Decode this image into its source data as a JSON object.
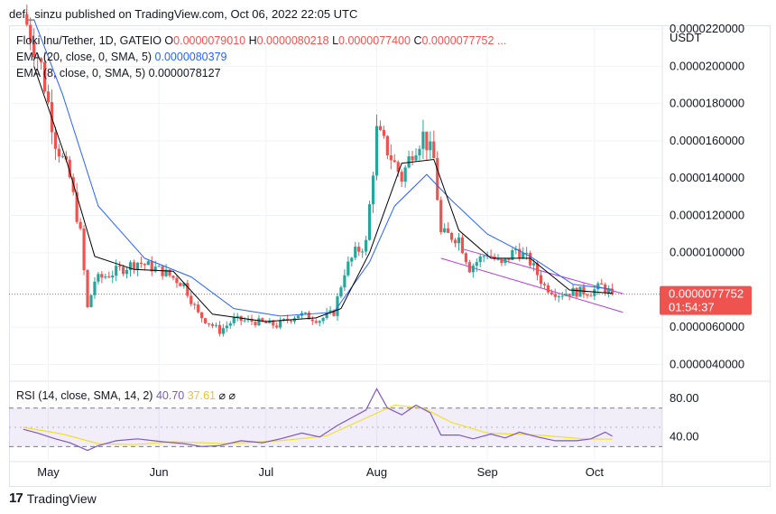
{
  "header": {
    "published": "defi_sinzu published on TradingView.com, Oct 06, 2022 22:05 UTC"
  },
  "legend": {
    "symbol": "Floki Inu/Tether, 1D, GATEIO",
    "o_label": "O",
    "o_value": "0.0000079010",
    "h_label": "H",
    "h_value": "0.0000080218",
    "l_label": "L",
    "l_value": "0.0000077400",
    "c_label": "C",
    "c_value": "0.0000077752 ...",
    "ema20_label": "EMA (20, close, 0, SMA, 5)",
    "ema20_value": "0.0000080379",
    "ema8_label": "EMA (8, close, 0, SMA, 5)",
    "ema8_value": "0.0000078127",
    "rsi_label": "RSI (14, close, SMA, 14, 2)",
    "rsi_value": "40.70",
    "rsi_ma_value": "37.61",
    "rsi_extra": "⌀ ⌀"
  },
  "axis": {
    "currency": "USDT"
  },
  "price_tag": {
    "value": "0.0000077752",
    "countdown": "01:54:37"
  },
  "footer": {
    "brand": "TradingView"
  },
  "colors": {
    "up": "#26a69a",
    "down": "#ef5350",
    "ema20": "#2962ff",
    "ema8": "#000000",
    "rsi": "#7e57c2",
    "rsi_ma": "#f2e02a",
    "channel": "#b23fd8"
  },
  "chart_data": [
    {
      "type": "candlestick",
      "title": "Floki Inu/Tether, 1D, GATEIO",
      "x_tick_labels": [
        "May",
        "Jun",
        "Jul",
        "Aug",
        "Sep",
        "Oct"
      ],
      "y_tick_labels": [
        "0.0000220000",
        "0.0000200000",
        "0.0000180000",
        "0.0000160000",
        "0.0000140000",
        "0.0000120000",
        "0.0000100000",
        "0.0000060000",
        "0.0000040000"
      ],
      "ylim": [
        3.2e-06,
        2.22e-05
      ],
      "last_price": 7.7752e-06,
      "ohlc_keypoints": [
        {
          "date": "2022-04-24",
          "close": 2.28e-05
        },
        {
          "date": "2022-04-29",
          "close": 2e-05
        },
        {
          "date": "2022-05-03",
          "close": 1.6e-05
        },
        {
          "date": "2022-05-07",
          "close": 1.4e-05
        },
        {
          "date": "2022-05-10",
          "close": 1.1e-05
        },
        {
          "date": "2022-05-12",
          "close": 7e-06
        },
        {
          "date": "2022-05-14",
          "close": 8.5e-06
        },
        {
          "date": "2022-05-20",
          "close": 9e-06
        },
        {
          "date": "2022-05-26",
          "close": 9.5e-06
        },
        {
          "date": "2022-06-02",
          "close": 9e-06
        },
        {
          "date": "2022-06-08",
          "close": 8.3e-06
        },
        {
          "date": "2022-06-12",
          "close": 6.7e-06
        },
        {
          "date": "2022-06-18",
          "close": 5.8e-06
        },
        {
          "date": "2022-06-22",
          "close": 6.4e-06
        },
        {
          "date": "2022-06-28",
          "close": 6.3e-06
        },
        {
          "date": "2022-07-04",
          "close": 6.1e-06
        },
        {
          "date": "2022-07-10",
          "close": 6.7e-06
        },
        {
          "date": "2022-07-16",
          "close": 6.4e-06
        },
        {
          "date": "2022-07-20",
          "close": 6.8e-06
        },
        {
          "date": "2022-07-23",
          "close": 9e-06
        },
        {
          "date": "2022-07-26",
          "close": 1e-05
        },
        {
          "date": "2022-07-29",
          "close": 1.05e-05
        },
        {
          "date": "2022-08-01",
          "close": 1.65e-05
        },
        {
          "date": "2022-08-04",
          "close": 1.55e-05
        },
        {
          "date": "2022-08-08",
          "close": 1.4e-05
        },
        {
          "date": "2022-08-11",
          "close": 1.55e-05
        },
        {
          "date": "2022-08-14",
          "close": 1.63e-05
        },
        {
          "date": "2022-08-17",
          "close": 1.5e-05
        },
        {
          "date": "2022-08-19",
          "close": 1.1e-05
        },
        {
          "date": "2022-08-24",
          "close": 1.08e-05
        },
        {
          "date": "2022-08-27",
          "close": 9.2e-06
        },
        {
          "date": "2022-09-01",
          "close": 1e-05
        },
        {
          "date": "2022-09-05",
          "close": 9.3e-06
        },
        {
          "date": "2022-09-09",
          "close": 1.02e-05
        },
        {
          "date": "2022-09-13",
          "close": 9.5e-06
        },
        {
          "date": "2022-09-17",
          "close": 8.2e-06
        },
        {
          "date": "2022-09-21",
          "close": 7.8e-06
        },
        {
          "date": "2022-09-25",
          "close": 7.9e-06
        },
        {
          "date": "2022-09-30",
          "close": 7.9e-06
        },
        {
          "date": "2022-10-03",
          "close": 8.2e-06
        },
        {
          "date": "2022-10-06",
          "close": 7.7752e-06
        }
      ],
      "ema20_keypoints": [
        {
          "date": "2022-04-27",
          "value": 2.25e-05
        },
        {
          "date": "2022-05-05",
          "value": 1.85e-05
        },
        {
          "date": "2022-05-15",
          "value": 1.25e-05
        },
        {
          "date": "2022-05-28",
          "value": 9.7e-06
        },
        {
          "date": "2022-06-10",
          "value": 8.7e-06
        },
        {
          "date": "2022-06-22",
          "value": 7e-06
        },
        {
          "date": "2022-07-05",
          "value": 6.6e-06
        },
        {
          "date": "2022-07-20",
          "value": 6.8e-06
        },
        {
          "date": "2022-07-30",
          "value": 9.5e-06
        },
        {
          "date": "2022-08-06",
          "value": 1.25e-05
        },
        {
          "date": "2022-08-15",
          "value": 1.42e-05
        },
        {
          "date": "2022-08-22",
          "value": 1.28e-05
        },
        {
          "date": "2022-09-01",
          "value": 1.1e-05
        },
        {
          "date": "2022-09-13",
          "value": 9.8e-06
        },
        {
          "date": "2022-09-25",
          "value": 8.3e-06
        },
        {
          "date": "2022-10-06",
          "value": 8.0379e-06
        }
      ],
      "ema8_keypoints": [
        {
          "date": "2022-04-27",
          "value": 2e-05
        },
        {
          "date": "2022-05-06",
          "value": 1.5e-05
        },
        {
          "date": "2022-05-14",
          "value": 9.8e-06
        },
        {
          "date": "2022-05-25",
          "value": 9.1e-06
        },
        {
          "date": "2022-06-05",
          "value": 9e-06
        },
        {
          "date": "2022-06-16",
          "value": 6.7e-06
        },
        {
          "date": "2022-07-01",
          "value": 6.3e-06
        },
        {
          "date": "2022-07-15",
          "value": 6.5e-06
        },
        {
          "date": "2022-07-22",
          "value": 7e-06
        },
        {
          "date": "2022-07-30",
          "value": 1e-05
        },
        {
          "date": "2022-08-08",
          "value": 1.48e-05
        },
        {
          "date": "2022-08-17",
          "value": 1.5e-05
        },
        {
          "date": "2022-08-24",
          "value": 1.12e-05
        },
        {
          "date": "2022-09-02",
          "value": 9.7e-06
        },
        {
          "date": "2022-09-13",
          "value": 9.7e-06
        },
        {
          "date": "2022-09-24",
          "value": 8e-06
        },
        {
          "date": "2022-10-06",
          "value": 7.8127e-06
        }
      ],
      "channel_lines": [
        {
          "from": {
            "date": "2022-08-25",
            "value": 1.02e-05
          },
          "to": {
            "date": "2022-10-09",
            "value": 7.8e-06
          }
        },
        {
          "from": {
            "date": "2022-08-19",
            "value": 9.7e-06
          },
          "to": {
            "date": "2022-10-09",
            "value": 6.8e-06
          }
        }
      ]
    },
    {
      "type": "line",
      "title": "RSI (14, close, SMA, 14, 2)",
      "y_tick_labels": [
        "80.00",
        "40.00"
      ],
      "ylim": [
        20,
        96
      ],
      "band": [
        30,
        70
      ],
      "series": [
        {
          "name": "RSI",
          "points": [
            {
              "date": "2022-04-24",
              "value": 48
            },
            {
              "date": "2022-04-28",
              "value": 44
            },
            {
              "date": "2022-05-03",
              "value": 38
            },
            {
              "date": "2022-05-07",
              "value": 34
            },
            {
              "date": "2022-05-12",
              "value": 26
            },
            {
              "date": "2022-05-15",
              "value": 31
            },
            {
              "date": "2022-05-20",
              "value": 36
            },
            {
              "date": "2022-05-26",
              "value": 38
            },
            {
              "date": "2022-06-02",
              "value": 35
            },
            {
              "date": "2022-06-08",
              "value": 33
            },
            {
              "date": "2022-06-13",
              "value": 30
            },
            {
              "date": "2022-06-18",
              "value": 31
            },
            {
              "date": "2022-06-24",
              "value": 36
            },
            {
              "date": "2022-06-30",
              "value": 34
            },
            {
              "date": "2022-07-05",
              "value": 38
            },
            {
              "date": "2022-07-11",
              "value": 44
            },
            {
              "date": "2022-07-16",
              "value": 40
            },
            {
              "date": "2022-07-21",
              "value": 52
            },
            {
              "date": "2022-07-25",
              "value": 60
            },
            {
              "date": "2022-07-29",
              "value": 68
            },
            {
              "date": "2022-08-01",
              "value": 90
            },
            {
              "date": "2022-08-04",
              "value": 70
            },
            {
              "date": "2022-08-08",
              "value": 63
            },
            {
              "date": "2022-08-12",
              "value": 73
            },
            {
              "date": "2022-08-16",
              "value": 65
            },
            {
              "date": "2022-08-19",
              "value": 42
            },
            {
              "date": "2022-08-24",
              "value": 42
            },
            {
              "date": "2022-08-28",
              "value": 38
            },
            {
              "date": "2022-09-02",
              "value": 43
            },
            {
              "date": "2022-09-06",
              "value": 39
            },
            {
              "date": "2022-09-10",
              "value": 45
            },
            {
              "date": "2022-09-15",
              "value": 40
            },
            {
              "date": "2022-09-20",
              "value": 36
            },
            {
              "date": "2022-09-26",
              "value": 36
            },
            {
              "date": "2022-09-30",
              "value": 38
            },
            {
              "date": "2022-10-04",
              "value": 45
            },
            {
              "date": "2022-10-06",
              "value": 40.7
            }
          ]
        },
        {
          "name": "RSI MA",
          "points": [
            {
              "date": "2022-04-24",
              "value": 50
            },
            {
              "date": "2022-05-05",
              "value": 43
            },
            {
              "date": "2022-05-15",
              "value": 33
            },
            {
              "date": "2022-05-25",
              "value": 32
            },
            {
              "date": "2022-06-05",
              "value": 35
            },
            {
              "date": "2022-06-20",
              "value": 33
            },
            {
              "date": "2022-07-05",
              "value": 36
            },
            {
              "date": "2022-07-18",
              "value": 41
            },
            {
              "date": "2022-07-28",
              "value": 58
            },
            {
              "date": "2022-08-06",
              "value": 73
            },
            {
              "date": "2022-08-14",
              "value": 70
            },
            {
              "date": "2022-08-22",
              "value": 55
            },
            {
              "date": "2022-09-01",
              "value": 44
            },
            {
              "date": "2022-09-15",
              "value": 42
            },
            {
              "date": "2022-09-28",
              "value": 38
            },
            {
              "date": "2022-10-06",
              "value": 37.61
            }
          ]
        }
      ]
    }
  ]
}
